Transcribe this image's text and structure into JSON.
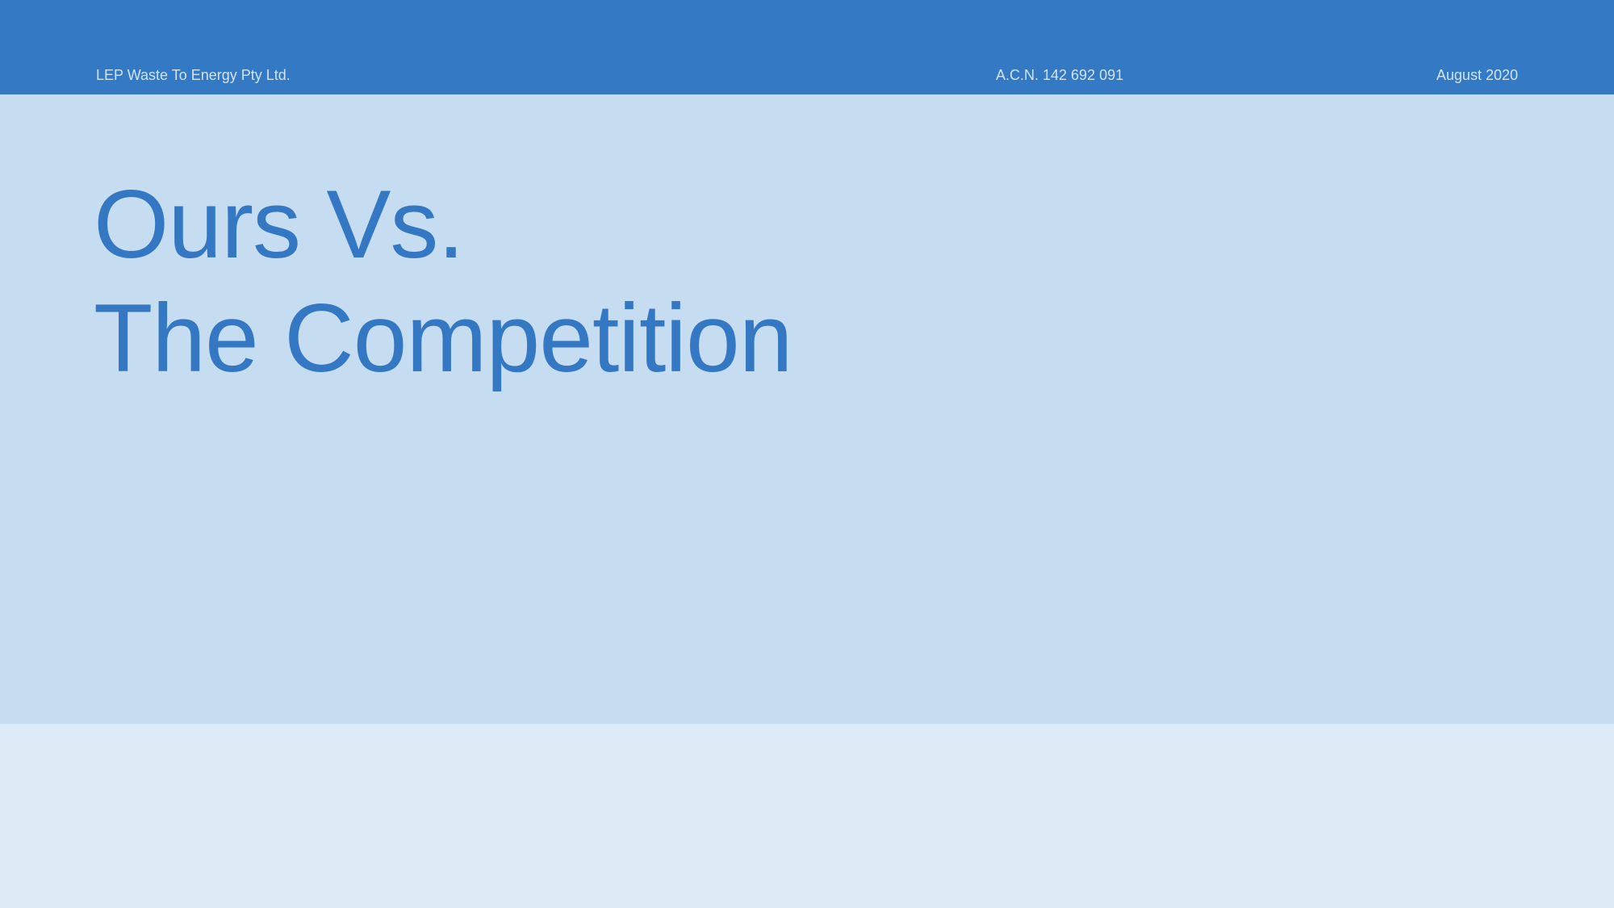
{
  "header": {
    "company_name": "LEP Waste To Energy Pty Ltd.",
    "acn": "A.C.N. 142 692 091",
    "date": "August 2020"
  },
  "title": {
    "line1": "Ours Vs.",
    "line2": "The Competition"
  },
  "colors": {
    "header_bar": "#3379c4",
    "title_panel": "#c6ddf1",
    "bottom_panel": "#ddebf7",
    "title_text": "#3478c3",
    "header_text": "#d3e3f4"
  }
}
